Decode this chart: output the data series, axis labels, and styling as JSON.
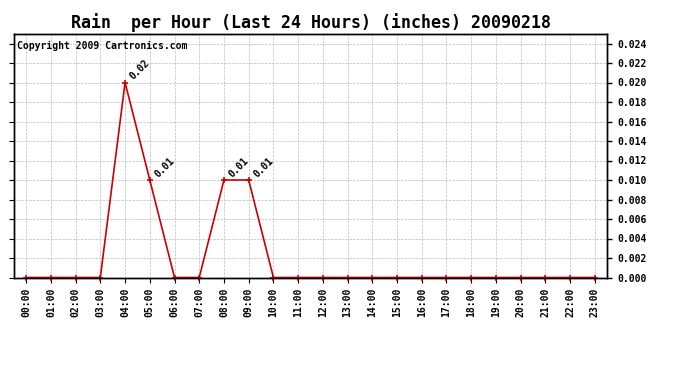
{
  "title": "Rain  per Hour (Last 24 Hours) (inches) 20090218",
  "copyright": "Copyright 2009 Cartronics.com",
  "hours": [
    "00:00",
    "01:00",
    "02:00",
    "03:00",
    "04:00",
    "05:00",
    "06:00",
    "07:00",
    "08:00",
    "09:00",
    "10:00",
    "11:00",
    "12:00",
    "13:00",
    "14:00",
    "15:00",
    "16:00",
    "17:00",
    "18:00",
    "19:00",
    "20:00",
    "21:00",
    "22:00",
    "23:00"
  ],
  "values": [
    0.0,
    0.0,
    0.0,
    0.0,
    0.02,
    0.01,
    0.0,
    0.0,
    0.01,
    0.01,
    0.0,
    0.0,
    0.0,
    0.0,
    0.0,
    0.0,
    0.0,
    0.0,
    0.0,
    0.0,
    0.0,
    0.0,
    0.0,
    0.0
  ],
  "line_color": "#cc0000",
  "bg_color": "#ffffff",
  "plot_bg_color": "#ffffff",
  "grid_color": "#bbbbbb",
  "ylim_min": 0.0,
  "ylim_max": 0.025,
  "ytick_min": 0.0,
  "ytick_max": 0.024,
  "ytick_step": 0.002,
  "title_fontsize": 12,
  "annotation_fontsize": 7,
  "tick_fontsize": 7,
  "copyright_fontsize": 7
}
